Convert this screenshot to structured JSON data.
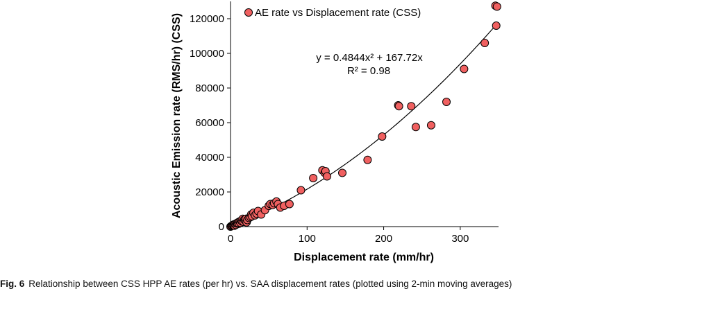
{
  "chart_data": {
    "type": "scatter",
    "xlabel": "Displacement rate (mm/hr)",
    "ylabel": "Acoustic Emission rate (RMS/hr) (CSS)",
    "xlim": [
      0,
      350
    ],
    "ylim": [
      0,
      130000
    ],
    "xticks": [
      0,
      100,
      200,
      300
    ],
    "yticks": [
      0,
      20000,
      40000,
      60000,
      80000,
      100000,
      120000
    ],
    "grid": false,
    "legend_position": "top",
    "series": [
      {
        "name": "AE rate vs Displacement rate (CSS)",
        "color": "#f06060",
        "points": [
          [
            0,
            0
          ],
          [
            1,
            300
          ],
          [
            2,
            600
          ],
          [
            3,
            900
          ],
          [
            4,
            1200
          ],
          [
            5,
            500
          ],
          [
            6,
            1500
          ],
          [
            7,
            1000
          ],
          [
            8,
            2000
          ],
          [
            9,
            1800
          ],
          [
            10,
            2500
          ],
          [
            11,
            1700
          ],
          [
            12,
            3000
          ],
          [
            13,
            2200
          ],
          [
            14,
            3500
          ],
          [
            15,
            3000
          ],
          [
            16,
            4500
          ],
          [
            17,
            2800
          ],
          [
            18,
            4000
          ],
          [
            19,
            3600
          ],
          [
            20,
            4500
          ],
          [
            21,
            2500
          ],
          [
            22,
            3800
          ],
          [
            24,
            5000
          ],
          [
            26,
            5500
          ],
          [
            27,
            7000
          ],
          [
            28,
            6000
          ],
          [
            30,
            8000
          ],
          [
            32,
            6500
          ],
          [
            34,
            7500
          ],
          [
            36,
            9000
          ],
          [
            40,
            7000
          ],
          [
            45,
            9500
          ],
          [
            50,
            12000
          ],
          [
            52,
            13000
          ],
          [
            55,
            12500
          ],
          [
            57,
            13500
          ],
          [
            60,
            14500
          ],
          [
            62,
            13000
          ],
          [
            65,
            11000
          ],
          [
            70,
            12000
          ],
          [
            77,
            13000
          ],
          [
            92,
            21000
          ],
          [
            108,
            28000
          ],
          [
            120,
            32500
          ],
          [
            123,
            31000
          ],
          [
            124,
            32000
          ],
          [
            126,
            29000
          ],
          [
            146,
            31000
          ],
          [
            179,
            38500
          ],
          [
            198,
            52000
          ],
          [
            219,
            70000
          ],
          [
            220,
            69500
          ],
          [
            236,
            69500
          ],
          [
            242,
            57500
          ],
          [
            262,
            58500
          ],
          [
            282,
            72000
          ],
          [
            305,
            91000
          ],
          [
            332,
            106000
          ],
          [
            346,
            127500
          ],
          [
            348,
            127000
          ],
          [
            347,
            116000
          ]
        ]
      }
    ],
    "trendline": {
      "type": "polynomial",
      "a": 0.4844,
      "b": 167.72,
      "equation_text": "y = 0.4844x² + 167.72x",
      "r2_text": "R² = 0.98",
      "x_range": [
        0,
        347
      ]
    }
  },
  "caption": {
    "label": "Fig. 6",
    "text": "Relationship between CSS HPP AE rates (per hr) vs. SAA displacement rates (plotted using 2-min moving averages)"
  }
}
